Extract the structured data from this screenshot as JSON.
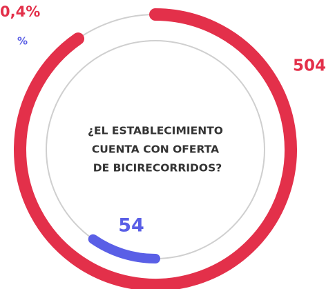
{
  "chart_data": {
    "type": "ring",
    "title_lines": [
      "¿EL ESTABLECIMIENTO",
      "CUENTA CON OFERTA",
      "DE BICIRECORRIDOS?"
    ],
    "values": [
      504,
      54
    ],
    "colors": [
      "#e3304a",
      "#5a5fe6"
    ],
    "annotations": [
      "0,4%",
      "%"
    ]
  }
}
